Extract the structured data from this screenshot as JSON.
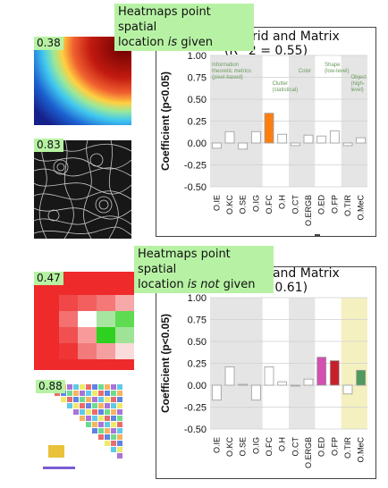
{
  "panels": [
    {
      "callout_line1": "Heatmaps point spatial",
      "callout_line2_a": "location ",
      "callout_line2_em": "is",
      "callout_line2_b": " given",
      "title_line1": "Grid and Matrix",
      "title_line2": "(R^2 = 0.55)",
      "thumb1_score": "0.38",
      "thumb2_score": "0.83"
    },
    {
      "callout_line1": "Heatmaps point spatial",
      "callout_line2_a": "location ",
      "callout_line2_em": "is not",
      "callout_line2_b": " given",
      "title_line1": "Grid and Matrix",
      "title_line2": "(R^2 = 0.61)",
      "thumb1_score": "0.47",
      "thumb2_score": "0.88"
    }
  ],
  "chart_data": [
    {
      "type": "bar",
      "ylabel": "Coefficient (p<0.05)",
      "ylim": [
        -0.5,
        1.0
      ],
      "yticks": [
        "1.00",
        "0.75",
        "0.50",
        "0.25",
        "0.00",
        "-0.25",
        "-0.50"
      ],
      "categories": [
        "O.IE",
        "O.KC",
        "O.SE",
        "O.IG",
        "O.FC",
        "O.H",
        "O.CT",
        "O.ERGB",
        "O.ED",
        "O.FP",
        "O.TIR",
        "O.MeC"
      ],
      "values": [
        -0.06,
        0.13,
        -0.07,
        0.13,
        0.34,
        0.1,
        -0.03,
        0.09,
        0.08,
        0.14,
        -0.03,
        0.06
      ],
      "colors": [
        "#ffffff",
        "#ffffff",
        "#ffffff",
        "#ffffff",
        "#ff7f0e",
        "#ffffff",
        "#ffffff",
        "#ffffff",
        "#ffffff",
        "#ffffff",
        "#ffffff",
        "#ffffff"
      ],
      "bands": [
        {
          "from": 0,
          "to": 3,
          "color": "#e5e5e5"
        },
        {
          "from": 6,
          "to": 7,
          "color": "#e5e5e5"
        },
        {
          "from": 10,
          "to": 11,
          "color": "#e5e5e5"
        }
      ],
      "annotations": [
        {
          "text": "Information",
          "cat": 0,
          "row": 0,
          "color": "#6a9a5a"
        },
        {
          "text": "theoretic metrics",
          "cat": 0,
          "row": 1,
          "color": "#6a9a5a"
        },
        {
          "text": "(pixel-based)",
          "cat": 0,
          "row": 2,
          "color": "#6a9a5a"
        },
        {
          "text": "Clutter",
          "cat": 4.6,
          "row": 3,
          "color": "#6a9a5a"
        },
        {
          "text": "(statistical)",
          "cat": 4.6,
          "row": 4,
          "color": "#6a9a5a"
        },
        {
          "text": "Color",
          "cat": 6.6,
          "row": 1,
          "color": "#6a9a5a"
        },
        {
          "text": "Shape",
          "cat": 8.6,
          "row": 0,
          "color": "#6a9a5a"
        },
        {
          "text": "(low-level)",
          "cat": 8.6,
          "row": 1,
          "color": "#6a9a5a"
        },
        {
          "text": "Object",
          "cat": 10.6,
          "row": 2,
          "color": "#6a9a5a"
        },
        {
          "text": "(high-",
          "cat": 10.6,
          "row": 3,
          "color": "#6a9a5a"
        },
        {
          "text": "level)",
          "cat": 10.6,
          "row": 4,
          "color": "#6a9a5a"
        }
      ]
    },
    {
      "type": "bar",
      "ylabel": "Coefficient (p<0.05)",
      "ylim": [
        -0.5,
        1.0
      ],
      "yticks": [
        "1.00",
        "0.75",
        "0.50",
        "0.25",
        "0.00",
        "-0.25",
        "-0.50"
      ],
      "categories": [
        "O.IE",
        "O.KC",
        "O.SE",
        "O.IG",
        "O.FC",
        "O.H",
        "O.CT",
        "O.ERGB",
        "O.ED",
        "O.FP",
        "O.TIR",
        "O.MeC"
      ],
      "values": [
        -0.17,
        0.21,
        0.01,
        -0.17,
        0.21,
        0.04,
        0.0,
        0.07,
        0.32,
        0.28,
        -0.1,
        0.17
      ],
      "colors": [
        "#ffffff",
        "#ffffff",
        "#ffffff",
        "#ffffff",
        "#ffffff",
        "#ffffff",
        "#ffffff",
        "#ffffff",
        "#d44fb2",
        "#c8202b",
        "#ffffff",
        "#4f9a5d"
      ],
      "bands": [
        {
          "from": 0,
          "to": 3,
          "color": "#e5e5e5"
        },
        {
          "from": 6,
          "to": 7,
          "color": "#e5e5e5"
        },
        {
          "from": 10,
          "to": 11,
          "color": "#f4f0c0"
        }
      ],
      "annotations": []
    }
  ]
}
